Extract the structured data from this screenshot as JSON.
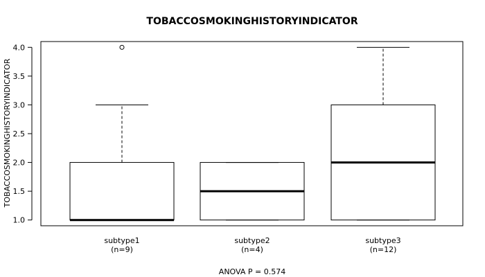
{
  "chart_data": {
    "type": "box",
    "title": "TOBACCOSMOKINGHISTORYINDICATOR",
    "ylabel": "TOBACCOSMOKINGHISTORYINDICATOR",
    "xlabel": "",
    "ylim": [
      0.9,
      4.1
    ],
    "yticks": [
      "1.0",
      "1.5",
      "2.0",
      "2.5",
      "3.0",
      "3.5",
      "4.0"
    ],
    "footnote": "ANOVA P = 0.574",
    "groups": [
      {
        "name": "subtype1",
        "n_label": "(n=9)",
        "whisker_low": 1.0,
        "q1": 1.0,
        "median": 1.0,
        "q3": 2.0,
        "whisker_high": 3.0,
        "outliers": [
          4.0
        ]
      },
      {
        "name": "subtype2",
        "n_label": "(n=4)",
        "whisker_low": 1.0,
        "q1": 1.0,
        "median": 1.5,
        "q3": 2.0,
        "whisker_high": 2.0,
        "outliers": []
      },
      {
        "name": "subtype3",
        "n_label": "(n=12)",
        "whisker_low": 1.0,
        "q1": 1.0,
        "median": 2.0,
        "q3": 3.0,
        "whisker_high": 4.0,
        "outliers": []
      }
    ]
  }
}
